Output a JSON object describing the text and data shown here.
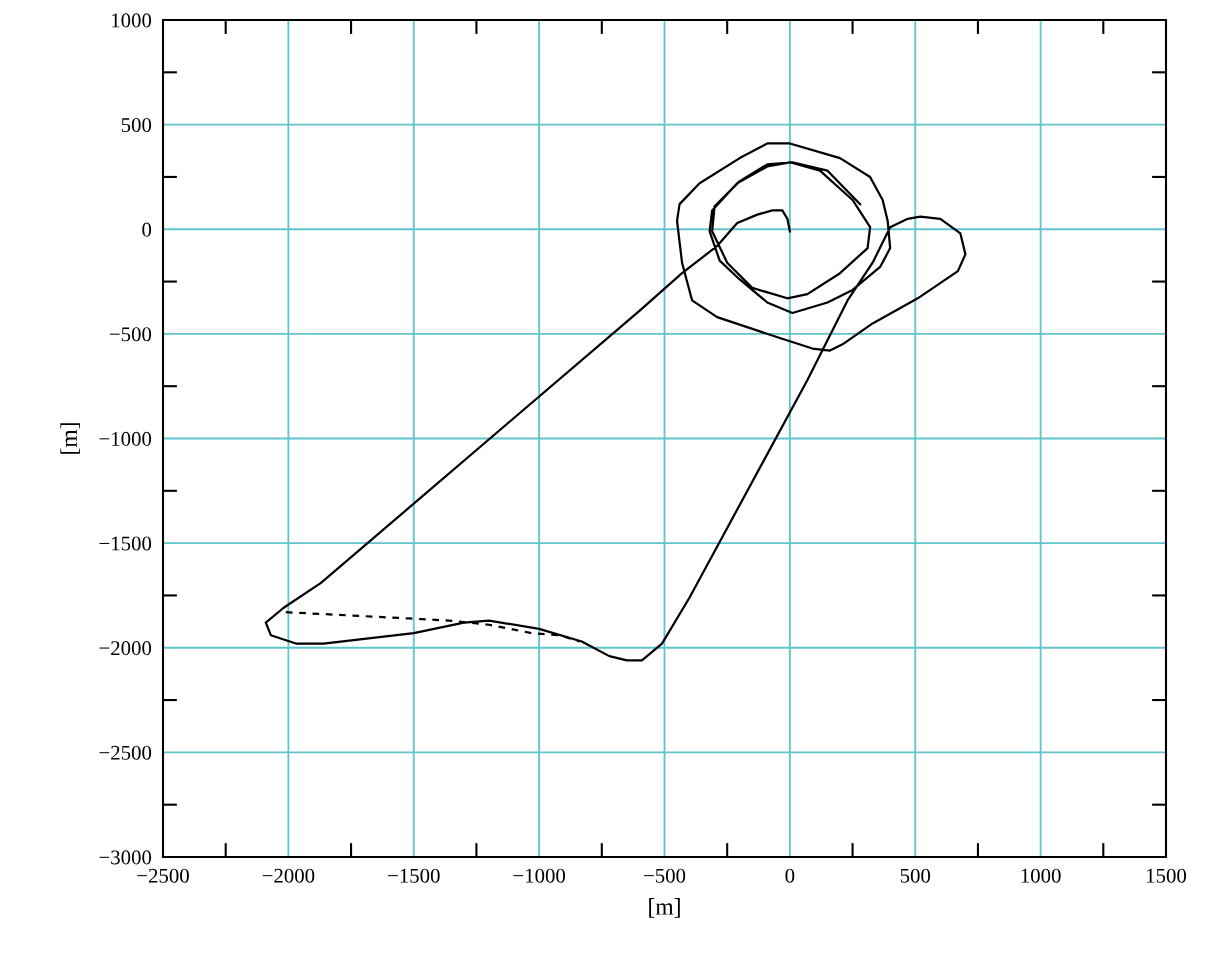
{
  "chart_data": {
    "type": "line",
    "xlabel": "[m]",
    "ylabel": "[m]",
    "xlim": [
      -2500,
      1500
    ],
    "ylim": [
      -3000,
      1000
    ],
    "xticks": [
      -2500,
      -2000,
      -1500,
      -1000,
      -500,
      0,
      500,
      1000,
      1500
    ],
    "yticks": [
      -3000,
      -2500,
      -2000,
      -1500,
      -1000,
      -500,
      0,
      500,
      1000
    ],
    "grid": true,
    "series": [
      {
        "color": "#000000",
        "line_style": "solid",
        "x": [
          0,
          -10,
          -30,
          -70,
          -130,
          -210,
          -290,
          -430,
          -600,
          -1870,
          -2020,
          -2090,
          -2070,
          -1970,
          -1860,
          -1500,
          -1300,
          -1200,
          -1000,
          -830,
          -720,
          -650,
          -590,
          -510,
          -400,
          70,
          230,
          330,
          400,
          470,
          520,
          600,
          680,
          700,
          670,
          510,
          330,
          210,
          160,
          90,
          -40,
          -290,
          -390,
          -430,
          -450,
          -440,
          -360,
          -200,
          -90,
          0,
          200,
          320,
          370,
          390,
          400,
          360,
          250,
          150,
          10,
          -90,
          -200,
          -280,
          -320,
          -310,
          -210,
          -90,
          0,
          120,
          250,
          320,
          310,
          200,
          70,
          -10,
          -150,
          -250,
          -310,
          -300,
          -200,
          -90,
          10,
          150,
          280
        ],
        "values": [
          -10,
          50,
          90,
          90,
          70,
          30,
          -80,
          -210,
          -390,
          -1690,
          -1810,
          -1880,
          -1940,
          -1980,
          -1980,
          -1930,
          -1880,
          -1870,
          -1910,
          -1970,
          -2040,
          -2060,
          -2060,
          -1980,
          -1760,
          -720,
          -340,
          -160,
          10,
          50,
          60,
          50,
          -20,
          -120,
          -200,
          -330,
          -450,
          -550,
          -580,
          -570,
          -520,
          -420,
          -340,
          -160,
          40,
          120,
          220,
          340,
          410,
          410,
          340,
          250,
          140,
          40,
          -90,
          -180,
          -290,
          -350,
          -400,
          -350,
          -240,
          -150,
          -10,
          90,
          220,
          300,
          320,
          280,
          140,
          10,
          -90,
          -210,
          -310,
          -330,
          -280,
          -160,
          -10,
          110,
          230,
          310,
          320,
          280,
          120
        ]
      },
      {
        "color": "#000000",
        "line_style": "dashed",
        "x": [
          -2010,
          -1520,
          -1360,
          -1200,
          -1030,
          -920,
          -840
        ],
        "values": [
          -1830,
          -1860,
          -1870,
          -1890,
          -1930,
          -1940,
          -1970
        ]
      }
    ]
  }
}
